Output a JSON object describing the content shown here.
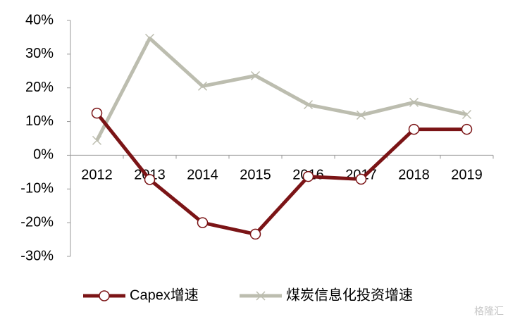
{
  "chart_data": {
    "type": "line",
    "categories": [
      "2012",
      "2013",
      "2014",
      "2015",
      "2016",
      "2017",
      "2018",
      "2019"
    ],
    "series": [
      {
        "name": "Capex增速",
        "color": "#7b1416",
        "marker": "circle",
        "values": [
          12.5,
          -7.2,
          -20,
          -23.4,
          -6.3,
          -7.1,
          7.7,
          7.7
        ]
      },
      {
        "name": "煤炭信息化投资增速",
        "color": "#bcbdaf",
        "marker": "x",
        "values": [
          4.4,
          34.7,
          20.5,
          23.6,
          15,
          11.9,
          15.7,
          12.1
        ]
      }
    ],
    "ylim": [
      -30,
      40
    ],
    "yticks": [
      {
        "value": -30,
        "label": "-30%"
      },
      {
        "value": -20,
        "label": "-20%"
      },
      {
        "value": -10,
        "label": "-10%"
      },
      {
        "value": 0,
        "label": "0%"
      },
      {
        "value": 10,
        "label": "10%"
      },
      {
        "value": 20,
        "label": "20%"
      },
      {
        "value": 30,
        "label": "30%"
      },
      {
        "value": 40,
        "label": "40%"
      }
    ],
    "grid": false,
    "legend": "bottom",
    "watermark": "格隆汇"
  }
}
